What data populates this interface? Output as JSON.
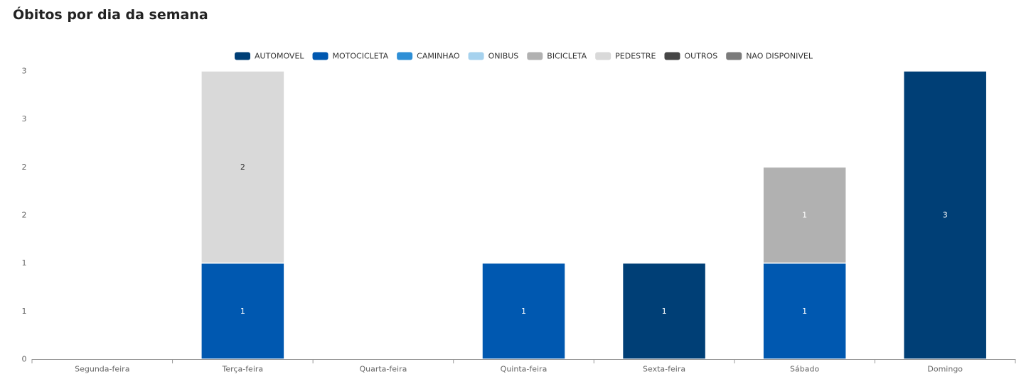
{
  "chart_data": {
    "type": "bar",
    "stacked": true,
    "title": "Óbitos por dia da semana",
    "xlabel": "",
    "ylabel": "",
    "categories": [
      "Segunda-feira",
      "Terça-feira",
      "Quarta-feira",
      "Quinta-feira",
      "Sexta-feira",
      "Sábado",
      "Domingo"
    ],
    "ylim": [
      0,
      3
    ],
    "y_tick_values": [
      0,
      0.5,
      1,
      1.5,
      2,
      2.5,
      3
    ],
    "y_tick_labels": [
      "0",
      "1",
      "1",
      "2",
      "2",
      "3",
      "3"
    ],
    "grid": false,
    "legend_position": "top-center",
    "series": [
      {
        "name": "AUTOMOVEL",
        "color": "#003f76",
        "values": [
          0,
          0,
          0,
          0,
          1,
          0,
          3
        ]
      },
      {
        "name": "MOTOCICLETA",
        "color": "#0058b0",
        "values": [
          0,
          1,
          0,
          1,
          0,
          1,
          0
        ]
      },
      {
        "name": "CAMINHAO",
        "color": "#2e8fd6",
        "values": [
          0,
          0,
          0,
          0,
          0,
          0,
          0
        ]
      },
      {
        "name": "ONIBUS",
        "color": "#a6d2ee",
        "values": [
          0,
          0,
          0,
          0,
          0,
          0,
          0
        ]
      },
      {
        "name": "BICICLETA",
        "color": "#b1b1b1",
        "values": [
          0,
          0,
          0,
          0,
          0,
          1,
          0
        ]
      },
      {
        "name": "PEDESTRE",
        "color": "#d9d9d9",
        "values": [
          0,
          2,
          0,
          0,
          0,
          0,
          0
        ]
      },
      {
        "name": "OUTROS",
        "color": "#464646",
        "values": [
          0,
          0,
          0,
          0,
          0,
          0,
          0
        ]
      },
      {
        "name": "NAO DISPONIVEL",
        "color": "#7b7b7b",
        "values": [
          0,
          0,
          0,
          0,
          0,
          0,
          0
        ]
      }
    ]
  }
}
